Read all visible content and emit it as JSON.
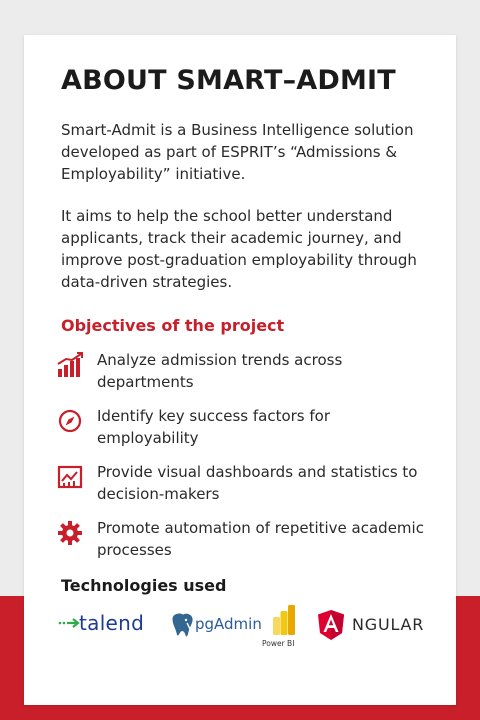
{
  "card": {
    "title": "ABOUT SMART–ADMIT",
    "paragraph_1": "Smart-Admit is a Business Intelligence solution developed as part of ESPRIT’s “Admissions & Employability” initiative.",
    "paragraph_2": "It aims to help the school better understand applicants, track their academic journey, and improve post-graduation employability through data-driven strategies.",
    "objectives_title": "Objectives of the project",
    "objectives": [
      {
        "icon": "bar-chart-trend-icon",
        "text": "Analyze admission trends across departments"
      },
      {
        "icon": "compass-icon",
        "text": "Identify key success factors for employability"
      },
      {
        "icon": "dashboard-chart-icon",
        "text": "Provide visual dashboards and statistics to decision-makers"
      },
      {
        "icon": "gear-icon",
        "text": "Promote automation of repetitive academic processes"
      }
    ],
    "technologies_title": "Technologies used",
    "technologies": [
      {
        "icon": "talend-logo",
        "label": "talend"
      },
      {
        "icon": "pgadmin-logo",
        "label": "pgAdmin"
      },
      {
        "icon": "power-bi-logo",
        "label": "Power BI"
      },
      {
        "icon": "angular-logo",
        "label": "NGULAR"
      }
    ]
  },
  "colors": {
    "accent": "#c81f2a",
    "background": "#ececec",
    "card": "#ffffff",
    "talend_blue": "#1f3a93",
    "pgadmin_blue": "#2a5b9c",
    "powerbi_yellow": "#f2c811"
  }
}
